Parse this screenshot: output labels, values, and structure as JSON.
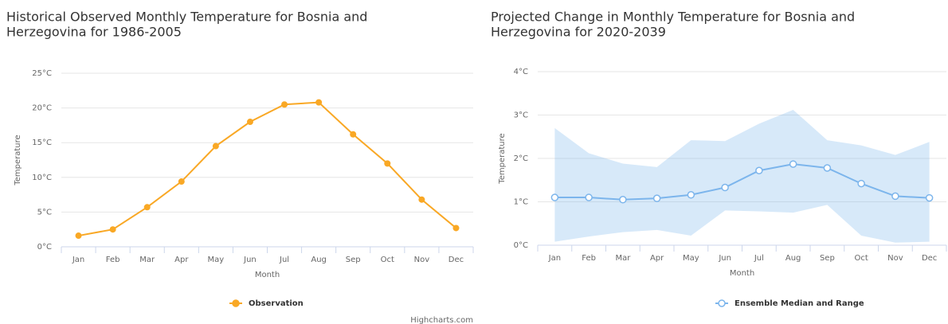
{
  "chart_data": [
    {
      "type": "line",
      "title": [
        "Historical Observed Monthly Temperature for Bosnia and",
        "Herzegovina for 1986-2005"
      ],
      "xlabel": "Month",
      "ylabel": "Temperature",
      "categories": [
        "Jan",
        "Feb",
        "Mar",
        "Apr",
        "May",
        "Jun",
        "Jul",
        "Aug",
        "Sep",
        "Oct",
        "Nov",
        "Dec"
      ],
      "series": [
        {
          "name": "Observation",
          "color": "#f9a825",
          "values": [
            1.6,
            2.5,
            5.7,
            9.4,
            14.5,
            18.0,
            20.5,
            20.8,
            16.2,
            12.0,
            6.8,
            2.7
          ]
        }
      ],
      "ylim": [
        0,
        25
      ],
      "yticks": [
        {
          "value": 0,
          "label": "0°C"
        },
        {
          "value": 5,
          "label": "5°C"
        },
        {
          "value": 10,
          "label": "10°C"
        },
        {
          "value": 15,
          "label": "15°C"
        },
        {
          "value": 20,
          "label": "20°C"
        },
        {
          "value": 25,
          "label": "25°C"
        }
      ],
      "grid": true,
      "credits": "Highcharts.com"
    },
    {
      "type": "line",
      "title": [
        "Projected Change in Monthly Temperature for Bosnia and",
        "Herzegovina for 2020-2039"
      ],
      "xlabel": "Month",
      "ylabel": "Temperature",
      "categories": [
        "Jan",
        "Feb",
        "Mar",
        "Apr",
        "May",
        "Jun",
        "Jul",
        "Aug",
        "Sep",
        "Oct",
        "Nov",
        "Dec"
      ],
      "series": [
        {
          "name": "Ensemble Median and Range",
          "color": "#7cb5ec",
          "values": [
            1.1,
            1.1,
            1.05,
            1.08,
            1.16,
            1.33,
            1.72,
            1.87,
            1.78,
            1.42,
            1.13,
            1.09
          ],
          "range_low": [
            0.08,
            0.2,
            0.3,
            0.35,
            0.22,
            0.8,
            0.78,
            0.75,
            0.93,
            0.22,
            0.06,
            0.08
          ],
          "range_high": [
            2.7,
            2.12,
            1.88,
            1.8,
            2.42,
            2.4,
            2.8,
            3.12,
            2.42,
            2.3,
            2.08,
            2.38
          ]
        }
      ],
      "ylim": [
        0,
        4
      ],
      "yticks": [
        {
          "value": 0,
          "label": "0°C"
        },
        {
          "value": 1,
          "label": "1°C"
        },
        {
          "value": 2,
          "label": "2°C"
        },
        {
          "value": 3,
          "label": "3°C"
        },
        {
          "value": 4,
          "label": "4°C"
        }
      ],
      "grid": true
    }
  ]
}
